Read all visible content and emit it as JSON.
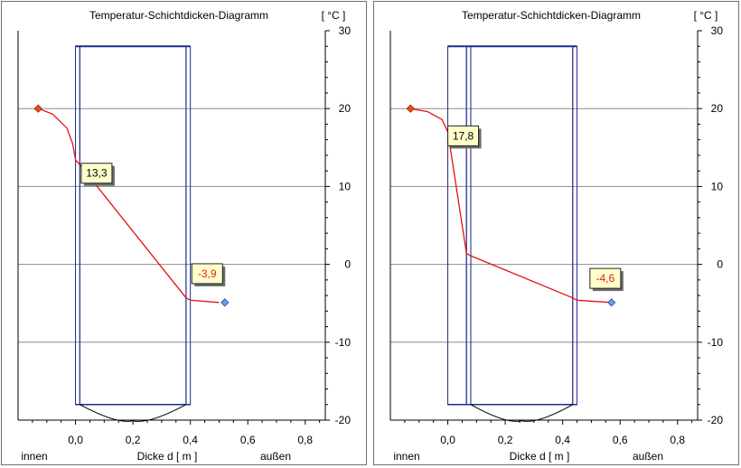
{
  "chart_data": [
    {
      "type": "line",
      "title": "Temperatur-Schichtdicken-Diagramm",
      "unit": "[ °C ]",
      "xlabel": "Dicke d [ m ]",
      "xlabel_left": "innen",
      "xlabel_right": "außen",
      "xlim": [
        -0.2,
        0.87
      ],
      "ylim": [
        -20,
        30
      ],
      "xticks": [
        0.0,
        0.2,
        0.4,
        0.6,
        0.8
      ],
      "xtick_labels": [
        "0,0",
        "0,2",
        "0,4",
        "0,6",
        "0,8"
      ],
      "yticks": [
        30,
        20,
        10,
        0,
        -10,
        -20
      ],
      "ytick_labels": [
        "30",
        "20",
        "10",
        "0",
        "-10",
        "-20"
      ],
      "grid": "horizontal",
      "layers": [
        {
          "x0": 0.0,
          "x1": 0.015
        },
        {
          "x0": 0.015,
          "x1": 0.385
        },
        {
          "x0": 0.385,
          "x1": 0.4
        }
      ],
      "curve": [
        [
          -0.13,
          20.0
        ],
        [
          -0.08,
          19.3
        ],
        [
          -0.03,
          17.5
        ],
        [
          -0.01,
          15.5
        ],
        [
          0.0,
          13.4
        ],
        [
          0.015,
          12.8
        ],
        [
          0.385,
          -4.3
        ],
        [
          0.4,
          -4.6
        ],
        [
          0.5,
          -4.9
        ]
      ],
      "inside_point": {
        "x": -0.13,
        "y": 20.0,
        "color": "#e8501a"
      },
      "outside_point": {
        "x": 0.52,
        "y": -4.9,
        "color": "#6aa0e0"
      },
      "callouts": [
        {
          "text": "13,3",
          "x": 0.02,
          "y": 11.7,
          "color": "#000000"
        },
        {
          "text": "-3,9",
          "x": 0.405,
          "y": -1.2,
          "color": "#e02020"
        }
      ]
    },
    {
      "type": "line",
      "title": "Temperatur-Schichtdicken-Diagramm",
      "unit": "[ °C ]",
      "xlabel": "Dicke d [ m ]",
      "xlabel_left": "innen",
      "xlabel_right": "außen",
      "xlim": [
        -0.2,
        0.87
      ],
      "ylim": [
        -20,
        30
      ],
      "xticks": [
        0.0,
        0.2,
        0.4,
        0.6,
        0.8
      ],
      "xtick_labels": [
        "0,0",
        "0,2",
        "0,4",
        "0,6",
        "0,8"
      ],
      "yticks": [
        30,
        20,
        10,
        0,
        -10,
        -20
      ],
      "ytick_labels": [
        "30",
        "20",
        "10",
        "0",
        "-10",
        "-20"
      ],
      "grid": "horizontal",
      "layers": [
        {
          "x0": 0.0,
          "x1": 0.065
        },
        {
          "x0": 0.065,
          "x1": 0.08
        },
        {
          "x0": 0.08,
          "x1": 0.435
        },
        {
          "x0": 0.435,
          "x1": 0.45
        }
      ],
      "curve": [
        [
          -0.13,
          20.0
        ],
        [
          -0.07,
          19.6
        ],
        [
          -0.02,
          18.6
        ],
        [
          0.0,
          17.0
        ],
        [
          0.065,
          1.4
        ],
        [
          0.08,
          1.1
        ],
        [
          0.435,
          -4.3
        ],
        [
          0.45,
          -4.6
        ],
        [
          0.57,
          -4.9
        ]
      ],
      "inside_point": {
        "x": -0.13,
        "y": 20.0,
        "color": "#e8501a"
      },
      "outside_point": {
        "x": 0.57,
        "y": -4.9,
        "color": "#6aa0e0"
      },
      "callouts": [
        {
          "text": "17,8",
          "x": 0.0,
          "y": 16.5,
          "color": "#000000"
        },
        {
          "text": "-4,6",
          "x": 0.495,
          "y": -1.8,
          "color": "#e02020"
        }
      ]
    }
  ]
}
